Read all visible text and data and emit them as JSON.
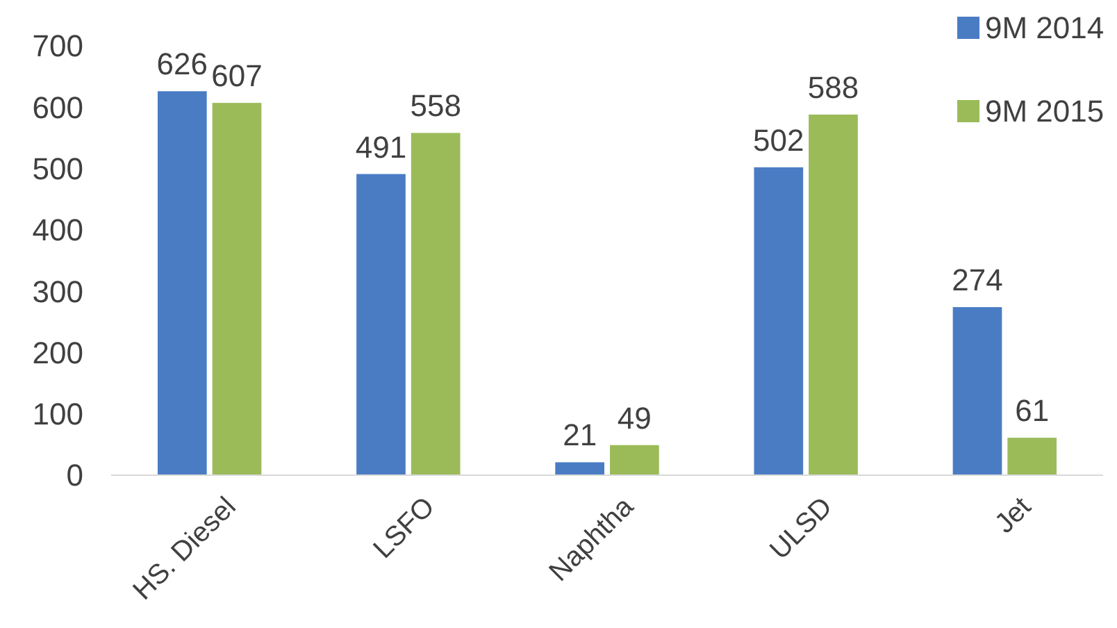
{
  "chart_data": {
    "type": "bar",
    "categories": [
      "HS. Diesel",
      "LSFO",
      "Naphtha",
      "ULSD",
      "Jet"
    ],
    "series": [
      {
        "name": "9M 2014",
        "color": "#4a7cc4",
        "values": [
          626,
          491,
          21,
          502,
          274
        ]
      },
      {
        "name": "9M 2015",
        "color": "#9bbb59",
        "values": [
          607,
          558,
          49,
          588,
          61
        ]
      }
    ],
    "ylim": [
      0,
      700
    ],
    "yticks": [
      0,
      100,
      200,
      300,
      400,
      500,
      600,
      700
    ],
    "data_labels": true,
    "legend": "top right",
    "grid": false
  }
}
